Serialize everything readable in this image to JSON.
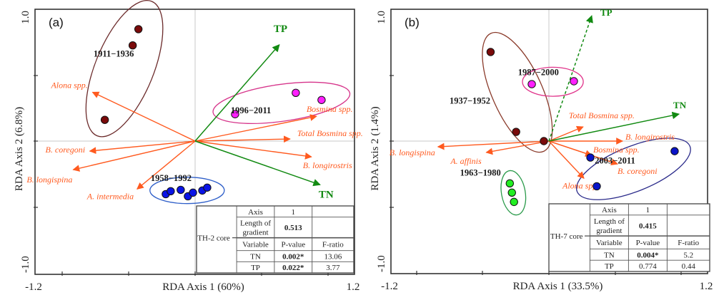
{
  "chart_data": [
    {
      "type": "scatter",
      "subtype": "rda-biplot",
      "panel_label": "(a)",
      "xlabel": "RDA  Axis 1 (60%)",
      "ylabel": "RDA  Axis 2 (6.8%)",
      "xlim": [
        -1.2,
        1.2
      ],
      "ylim": [
        -1.0,
        1.0
      ],
      "x_tick_labels": [
        "-1.2",
        "1.2"
      ],
      "y_tick_labels": [
        "1.0",
        "-1.0"
      ],
      "zero_lines": true,
      "env_arrows": [
        {
          "name": "TP",
          "x": 0.634,
          "y": 0.731,
          "dashed": false
        },
        {
          "name": "TN",
          "x": 0.941,
          "y": -0.328,
          "dashed": false
        }
      ],
      "species_arrows": [
        {
          "name": "Alona spp.",
          "x": -0.769,
          "y": 0.371
        },
        {
          "name": "Bosmina spp.",
          "x": 0.914,
          "y": 0.188
        },
        {
          "name": "Total Bosmina spp.",
          "x": 0.715,
          "y": 0.016
        },
        {
          "name": "B. longirostris",
          "x": 0.876,
          "y": -0.118
        },
        {
          "name": "B. coregoni",
          "x": -0.79,
          "y": -0.075
        },
        {
          "name": "B. longispina",
          "x": -0.914,
          "y": -0.215
        },
        {
          "name": "A. intermedia",
          "x": -0.435,
          "y": -0.36
        }
      ],
      "groups": [
        {
          "name": "1911−1936",
          "color": "#7a0a0a",
          "ring": "#6b2a2a",
          "points": [
            [
              -0.425,
              0.849
            ],
            [
              -0.468,
              0.726
            ],
            [
              -0.677,
              0.161
            ]
          ]
        },
        {
          "name": "1996−2011",
          "color": "#ff1fff",
          "ring": "#d6338a",
          "points": [
            [
              0.301,
              0.204
            ],
            [
              0.758,
              0.366
            ],
            [
              0.952,
              0.312
            ]
          ]
        },
        {
          "name": "1958−1992",
          "color": "#0a14e6",
          "ring": "#2f5fc9",
          "points": [
            [
              -0.22,
              -0.398
            ],
            [
              -0.183,
              -0.376
            ],
            [
              -0.108,
              -0.366
            ],
            [
              -0.054,
              -0.414
            ],
            [
              -0.016,
              -0.387
            ],
            [
              0.054,
              -0.371
            ],
            [
              0.091,
              -0.349
            ]
          ]
        }
      ],
      "table": {
        "core": "TH-2 core",
        "rows": [
          [
            "Axis",
            "1",
            ""
          ],
          [
            "Length of gradient",
            "0.513",
            ""
          ],
          [
            "Variable",
            "P-value",
            "F-ratio"
          ],
          [
            "TN",
            "0.002*",
            "13.06"
          ],
          [
            "TP",
            "0.022*",
            "3.77"
          ]
        ],
        "significant": [
          "TN",
          "TP"
        ]
      }
    },
    {
      "type": "scatter",
      "subtype": "rda-biplot",
      "panel_label": "(b)",
      "xlabel": "RDA  Axis 1 (33.5%)",
      "ylabel": "RDA  Axis 2 (1.4%)",
      "xlim": [
        -1.2,
        1.2
      ],
      "ylim": [
        -1.0,
        1.0
      ],
      "x_tick_labels": [
        "-1.2",
        "1.2"
      ],
      "y_tick_labels": [
        "1.0",
        "-1.0"
      ],
      "zero_lines": true,
      "env_arrows": [
        {
          "name": "TP",
          "x": 0.324,
          "y": 0.951,
          "dashed": true
        },
        {
          "name": "TN",
          "x": 0.984,
          "y": 0.205,
          "dashed": false
        }
      ],
      "species_arrows": [
        {
          "name": "Total Bosmina spp.",
          "x": 0.259,
          "y": 0.108
        },
        {
          "name": "B. longirostris",
          "x": 0.557,
          "y": 0.0
        },
        {
          "name": "Bosmina spp.",
          "x": 0.324,
          "y": -0.108
        },
        {
          "name": "B. coregoni",
          "x": 0.519,
          "y": -0.173
        },
        {
          "name": "Alona spp.",
          "x": 0.265,
          "y": -0.281
        },
        {
          "name": "B. longispina",
          "x": -0.843,
          "y": -0.043
        },
        {
          "name": "A. affinis",
          "x": -0.476,
          "y": -0.086
        }
      ],
      "groups": [
        {
          "name": "1937−1952",
          "color": "#7a0a0a",
          "ring": "#8a3a2a",
          "points": [
            [
              -0.443,
              0.676
            ],
            [
              -0.249,
              0.07
            ],
            [
              -0.038,
              0.0
            ]
          ]
        },
        {
          "name": "1987−2000",
          "color": "#ff1fff",
          "ring": "#e0338a",
          "points": [
            [
              -0.13,
              0.432
            ],
            [
              0.189,
              0.454
            ]
          ]
        },
        {
          "name": "1963−1980",
          "color": "#22ee22",
          "ring": "#2a9a4a",
          "points": [
            [
              -0.297,
              -0.319
            ],
            [
              -0.281,
              -0.389
            ],
            [
              -0.265,
              -0.459
            ]
          ]
        },
        {
          "name": "2003−2011",
          "color": "#0a14c8",
          "ring": "#2a2a8a",
          "points": [
            [
              0.314,
              -0.124
            ],
            [
              0.362,
              -0.341
            ],
            [
              0.951,
              -0.076
            ]
          ]
        }
      ],
      "table": {
        "core": "TH-7 core",
        "rows": [
          [
            "Axis",
            "1",
            ""
          ],
          [
            "Length of gradient",
            "0.415",
            ""
          ],
          [
            "Variable",
            "P-value",
            "F-ratio"
          ],
          [
            "TN",
            "0.004*",
            "5.2"
          ],
          [
            "TP",
            "0.774",
            "0.44"
          ]
        ],
        "significant": [
          "TN"
        ]
      }
    }
  ],
  "colors": {
    "species_arrow": "#ff5a1f",
    "env_arrow": "#128a12",
    "frame": "#333333",
    "zero_line": "#c8c8c8"
  }
}
